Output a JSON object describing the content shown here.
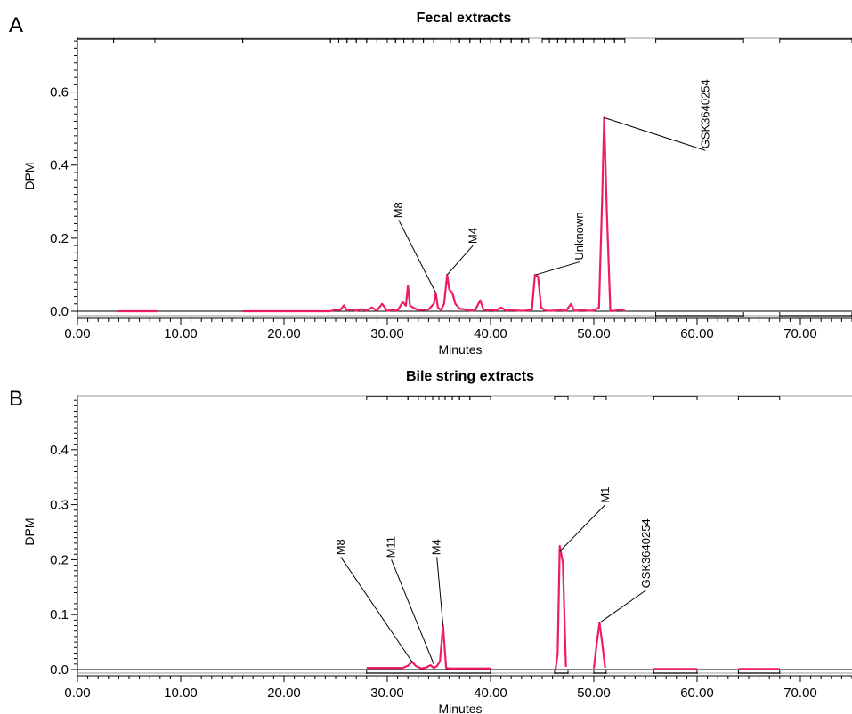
{
  "colors": {
    "trace": "#ee1d5d",
    "axis": "#000000"
  },
  "chart_data": [
    {
      "type": "line",
      "panel_label": "A",
      "title": "Fecal extracts",
      "xlabel": "Minutes",
      "ylabel": "DPM",
      "xlim": [
        0,
        75
      ],
      "ylim": [
        -0.015,
        0.75
      ],
      "xticks": [
        0,
        10,
        20,
        30,
        40,
        50,
        60,
        70
      ],
      "xtick_labels": [
        "0.00",
        "10.00",
        "20.00",
        "30.00",
        "40.00",
        "50.00",
        "60.00",
        "70.00"
      ],
      "yticks": [
        0.0,
        0.2,
        0.4,
        0.6
      ],
      "ytick_labels": [
        "0.0",
        "0.2",
        "0.4",
        "0.6"
      ],
      "grid": false,
      "fraction_bars_top": [
        [
          0,
          3.5
        ],
        [
          3.5,
          7.5
        ],
        [
          7.5,
          16
        ],
        [
          16,
          24.5
        ],
        [
          24.5,
          25.3
        ],
        [
          25.3,
          26.1
        ],
        [
          26.1,
          27
        ],
        [
          27,
          28
        ],
        [
          28,
          29
        ],
        [
          29,
          30
        ],
        [
          30,
          30.8
        ],
        [
          30.8,
          31.6
        ],
        [
          31.6,
          32.5
        ],
        [
          32.5,
          33.5
        ],
        [
          33.5,
          34.5
        ],
        [
          34.5,
          35.3
        ],
        [
          35.3,
          36.1
        ],
        [
          36.1,
          37
        ],
        [
          37,
          38
        ],
        [
          38,
          39
        ],
        [
          39,
          40
        ],
        [
          40,
          41
        ],
        [
          41,
          42
        ],
        [
          42,
          43
        ],
        [
          43,
          43.7
        ],
        [
          45,
          45.7
        ],
        [
          45.7,
          46.5
        ],
        [
          46.5,
          47.3
        ],
        [
          47.3,
          48.1
        ],
        [
          48.1,
          49
        ],
        [
          49,
          50
        ],
        [
          50,
          51
        ],
        [
          51,
          52
        ],
        [
          52,
          53
        ],
        [
          56,
          64.5
        ],
        [
          68,
          75
        ]
      ],
      "fraction_bars_bottom": [
        [
          56,
          64.5
        ],
        [
          68,
          75
        ]
      ],
      "series": [
        {
          "segments": [
            [
              [
                3.8,
                0
              ],
              [
                7.7,
                0
              ]
            ],
            [
              [
                16,
                0
              ],
              [
                24.5,
                0
              ],
              [
                24.9,
                0.004
              ],
              [
                25.2,
                0.003
              ],
              [
                25.5,
                0.005
              ],
              [
                25.8,
                0.016
              ],
              [
                26.1,
                0.002
              ],
              [
                26.5,
                0.005
              ],
              [
                27,
                0.001
              ],
              [
                27.5,
                0.006
              ],
              [
                28,
                0.002
              ],
              [
                28.5,
                0.01
              ],
              [
                29,
                0.002
              ],
              [
                29.5,
                0.02
              ],
              [
                30,
                0.001
              ],
              [
                30.5,
                0.003
              ],
              [
                31,
                0.002
              ],
              [
                31.5,
                0.025
              ],
              [
                31.8,
                0.015
              ],
              [
                32,
                0.07
              ],
              [
                32.2,
                0.015
              ],
              [
                32.5,
                0.01
              ],
              [
                33,
                0.003
              ],
              [
                33.5,
                0.004
              ],
              [
                34,
                0.005
              ],
              [
                34.5,
                0.02
              ],
              [
                34.7,
                0.05
              ],
              [
                34.9,
                0.01
              ],
              [
                35.2,
                0.003
              ],
              [
                35.5,
                0.02
              ],
              [
                35.8,
                0.1
              ],
              [
                36,
                0.06
              ],
              [
                36.3,
                0.05
              ],
              [
                36.6,
                0.02
              ],
              [
                37,
                0.007
              ],
              [
                37.5,
                0.005
              ],
              [
                38,
                0.002
              ],
              [
                38.5,
                0.002
              ],
              [
                39,
                0.03
              ],
              [
                39.3,
                0.005
              ],
              [
                39.7,
                0.002
              ],
              [
                40,
                0.004
              ],
              [
                40.5,
                0.002
              ],
              [
                41,
                0.01
              ],
              [
                41.5,
                0.002
              ],
              [
                42,
                0.003
              ],
              [
                42.5,
                0.002
              ],
              [
                43,
                0.001
              ],
              [
                43.5,
                0.002
              ],
              [
                44,
                0.003
              ],
              [
                44.3,
                0.1
              ],
              [
                44.6,
                0.095
              ],
              [
                44.9,
                0.01
              ],
              [
                45.3,
                0.002
              ],
              [
                45.8,
                0.001
              ],
              [
                46.3,
                0.002
              ],
              [
                46.8,
                0.003
              ],
              [
                47.3,
                0.001
              ],
              [
                47.8,
                0.02
              ],
              [
                48.1,
                0.001
              ],
              [
                48.5,
                0.002
              ],
              [
                49,
                0.003
              ],
              [
                49.5,
                0.001
              ],
              [
                50,
                0.002
              ],
              [
                50.5,
                0.01
              ],
              [
                50.8,
                0.3
              ],
              [
                51,
                0.53
              ],
              [
                51.25,
                0.28
              ],
              [
                51.6,
                0.001
              ],
              [
                52,
                0.001
              ],
              [
                52.5,
                0.005
              ],
              [
                53,
                0.001
              ]
            ]
          ]
        }
      ],
      "annotations": [
        {
          "text": "M8",
          "x": 34.7,
          "y": 0.05,
          "label_at": [
            31.1,
            0.25
          ]
        },
        {
          "text": "M4",
          "x": 35.8,
          "y": 0.1,
          "label_at": [
            38.3,
            0.18
          ]
        },
        {
          "text": "Unknown",
          "x": 44.4,
          "y": 0.1,
          "label_at": [
            48.6,
            0.135
          ]
        },
        {
          "text": "GSK3640254",
          "x": 51.0,
          "y": 0.53,
          "label_at": [
            60.8,
            0.44
          ]
        }
      ]
    },
    {
      "type": "line",
      "panel_label": "B",
      "title": "Bile string extracts",
      "xlabel": "Minutes",
      "ylabel": "DPM",
      "xlim": [
        0,
        75
      ],
      "ylim": [
        -0.01,
        0.5
      ],
      "xticks": [
        0,
        10,
        20,
        30,
        40,
        50,
        60,
        70
      ],
      "xtick_labels": [
        "0.00",
        "10.00",
        "20.00",
        "30.00",
        "40.00",
        "50.00",
        "60.00",
        "70.00"
      ],
      "yticks": [
        0.0,
        0.1,
        0.2,
        0.3,
        0.4
      ],
      "ytick_labels": [
        "0.0",
        "0.1",
        "0.2",
        "0.3",
        "0.4"
      ],
      "grid": false,
      "fraction_bars_top": [
        [
          28,
          30
        ],
        [
          30,
          32
        ],
        [
          32,
          33
        ],
        [
          33,
          33.7
        ],
        [
          33.7,
          34.4
        ],
        [
          34.4,
          35
        ],
        [
          35,
          35.6
        ],
        [
          35.6,
          36.3
        ],
        [
          36.3,
          37
        ],
        [
          37,
          38
        ],
        [
          38,
          40
        ],
        [
          46.2,
          47.5
        ],
        [
          50,
          51.2
        ],
        [
          55.8,
          60
        ],
        [
          64,
          68
        ]
      ],
      "fraction_bars_bottom": [
        [
          28,
          40
        ],
        [
          46.2,
          47.5
        ],
        [
          50,
          51.2
        ],
        [
          55.8,
          60
        ],
        [
          64,
          68
        ]
      ],
      "series": [
        {
          "segments": [
            [
              [
                28,
                0.003
              ],
              [
                31.5,
                0.003
              ],
              [
                32,
                0.007
              ],
              [
                32.4,
                0.014
              ],
              [
                32.8,
                0.006
              ],
              [
                33.3,
                0.002
              ],
              [
                33.8,
                0.004
              ],
              [
                34.2,
                0.008
              ],
              [
                34.5,
                0.003
              ],
              [
                34.8,
                0.006
              ],
              [
                35.1,
                0.015
              ],
              [
                35.4,
                0.08
              ],
              [
                35.7,
                0.003
              ],
              [
                36,
                0.002
              ],
              [
                40,
                0.002
              ]
            ],
            [
              [
                46.3,
                0.001
              ],
              [
                46.5,
                0.03
              ],
              [
                46.7,
                0.225
              ],
              [
                47.0,
                0.195
              ],
              [
                47.3,
                0.005
              ]
            ],
            [
              [
                50,
                0.002
              ],
              [
                50.3,
                0.05
              ],
              [
                50.55,
                0.085
              ],
              [
                50.8,
                0.05
              ],
              [
                51.1,
                0.003
              ]
            ],
            [
              [
                55.8,
                0.001
              ],
              [
                60,
                0.001
              ]
            ],
            [
              [
                64,
                0.001
              ],
              [
                68,
                0.001
              ]
            ]
          ]
        }
      ],
      "annotations": [
        {
          "text": "M8",
          "x": 32.4,
          "y": 0.014,
          "label_at": [
            25.5,
            0.205
          ]
        },
        {
          "text": "M11",
          "x": 34.5,
          "y": 0.01,
          "label_at": [
            30.4,
            0.2
          ]
        },
        {
          "text": "M4",
          "x": 35.4,
          "y": 0.08,
          "label_at": [
            34.8,
            0.205
          ]
        },
        {
          "text": "M1",
          "x": 46.7,
          "y": 0.215,
          "label_at": [
            51.1,
            0.3
          ]
        },
        {
          "text": "GSK3640254",
          "x": 50.55,
          "y": 0.085,
          "label_at": [
            55.1,
            0.145
          ]
        }
      ]
    }
  ]
}
